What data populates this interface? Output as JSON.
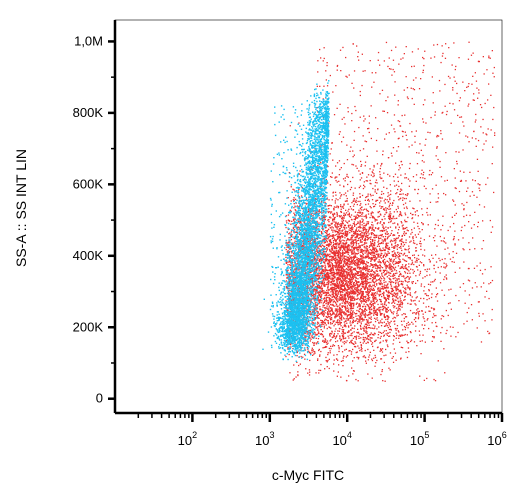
{
  "chart_data": {
    "type": "scatter",
    "title": "",
    "xlabel": "c-Myc FITC",
    "ylabel": "SS-A :: SS INT LIN",
    "x_scale": "log",
    "xlim": [
      10.0,
      1000000.0
    ],
    "ylim": [
      -40000,
      1060000
    ],
    "x_ticks": [
      {
        "value": 100,
        "base": "10",
        "exp": "2"
      },
      {
        "value": 1000,
        "base": "10",
        "exp": "3"
      },
      {
        "value": 10000,
        "base": "10",
        "exp": "4"
      },
      {
        "value": 100000,
        "base": "10",
        "exp": "5"
      },
      {
        "value": 1000000,
        "base": "10",
        "exp": "6"
      }
    ],
    "y_ticks": [
      {
        "value": 0,
        "label": "0"
      },
      {
        "value": 200000,
        "label": "200K"
      },
      {
        "value": 400000,
        "label": "400K"
      },
      {
        "value": 600000,
        "label": "600K"
      },
      {
        "value": 800000,
        "label": "800K"
      },
      {
        "value": 1000000,
        "label": "1,0M"
      }
    ],
    "series": [
      {
        "color": "#e83030",
        "population": "positive",
        "x_center_log10": 3.95,
        "x_spread_log10": 0.5,
        "y_center": 350000,
        "y_spread": 110000,
        "count": 7000
      },
      {
        "color": "#1cc0f0",
        "population": "negative",
        "x_range": [
          1000,
          6000
        ],
        "y_range": [
          100000,
          900000
        ],
        "count": 5000
      }
    ],
    "grid": false,
    "legend": "none"
  },
  "colors": {
    "axis": "#000000",
    "positive": "#e83030",
    "negative": "#1cc0f0"
  }
}
